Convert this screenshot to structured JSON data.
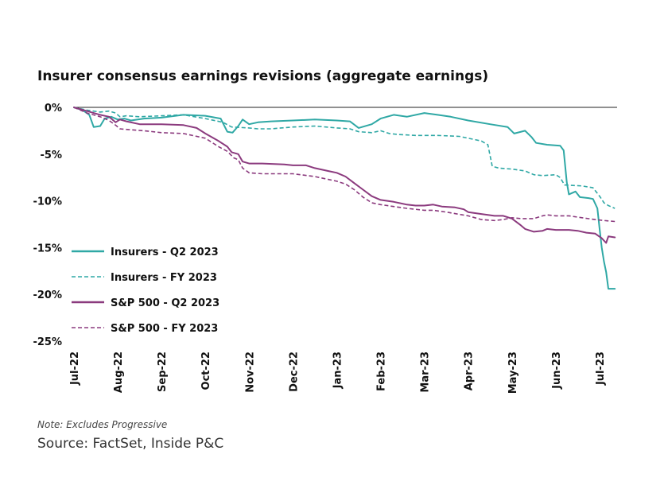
{
  "chart_data": {
    "type": "line",
    "title": "Insurer consensus earnings revisions (aggregate earnings)",
    "xlabel": "",
    "ylabel": "",
    "ylim": [
      -25,
      0
    ],
    "y_ticks": [
      0,
      -5,
      -10,
      -15,
      -20,
      -25
    ],
    "y_tick_labels": [
      "0%",
      "-5%",
      "-10%",
      "-15%",
      "-20%",
      "-25%"
    ],
    "x_range": [
      0,
      12.4
    ],
    "x_ticks": [
      0,
      1,
      2,
      3,
      4,
      5,
      6,
      7,
      8,
      9,
      10,
      11,
      12
    ],
    "x_tick_labels": [
      "Jul-22",
      "Aug-22",
      "Sep-22",
      "Oct-22",
      "Nov-22",
      "Dec-22",
      "Jan-23",
      "Feb-23",
      "Mar-23",
      "Apr-23",
      "May-23",
      "Jun-23",
      "Jul-23"
    ],
    "legend_position": "left",
    "series": [
      {
        "name": "Insurers - Q2 2023",
        "color": "#2fa8a5",
        "dash": "solid",
        "points": [
          [
            0,
            0
          ],
          [
            0.2,
            -0.3
          ],
          [
            0.35,
            -0.8
          ],
          [
            0.45,
            -2.1
          ],
          [
            0.6,
            -2.0
          ],
          [
            0.7,
            -1.2
          ],
          [
            0.85,
            -1.0
          ],
          [
            1.0,
            -1.3
          ],
          [
            1.15,
            -1.2
          ],
          [
            1.3,
            -1.4
          ],
          [
            1.6,
            -1.2
          ],
          [
            2.0,
            -1.1
          ],
          [
            2.5,
            -0.8
          ],
          [
            3.0,
            -0.9
          ],
          [
            3.35,
            -1.2
          ],
          [
            3.5,
            -2.6
          ],
          [
            3.62,
            -2.7
          ],
          [
            3.75,
            -2.0
          ],
          [
            3.85,
            -1.3
          ],
          [
            4.0,
            -1.8
          ],
          [
            4.2,
            -1.6
          ],
          [
            4.5,
            -1.5
          ],
          [
            5.0,
            -1.4
          ],
          [
            5.5,
            -1.3
          ],
          [
            6.0,
            -1.4
          ],
          [
            6.3,
            -1.5
          ],
          [
            6.5,
            -2.2
          ],
          [
            6.8,
            -1.8
          ],
          [
            7.0,
            -1.2
          ],
          [
            7.3,
            -0.8
          ],
          [
            7.6,
            -1.0
          ],
          [
            8.0,
            -0.6
          ],
          [
            8.3,
            -0.8
          ],
          [
            8.6,
            -1.0
          ],
          [
            9.0,
            -1.4
          ],
          [
            9.5,
            -1.8
          ],
          [
            9.9,
            -2.1
          ],
          [
            10.05,
            -2.8
          ],
          [
            10.3,
            -2.5
          ],
          [
            10.45,
            -3.2
          ],
          [
            10.55,
            -3.8
          ],
          [
            10.8,
            -4.0
          ],
          [
            11.1,
            -4.1
          ],
          [
            11.18,
            -4.6
          ],
          [
            11.25,
            -8.0
          ],
          [
            11.3,
            -9.3
          ],
          [
            11.45,
            -9.0
          ],
          [
            11.55,
            -9.6
          ],
          [
            11.75,
            -9.7
          ],
          [
            11.85,
            -9.8
          ],
          [
            11.95,
            -10.8
          ],
          [
            12.0,
            -13.0
          ],
          [
            12.05,
            -15.0
          ],
          [
            12.1,
            -16.5
          ],
          [
            12.15,
            -17.6
          ],
          [
            12.2,
            -19.4
          ],
          [
            12.35,
            -19.4
          ]
        ]
      },
      {
        "name": "Insurers - FY 2023",
        "color": "#2fa8a5",
        "dash": "dashed",
        "points": [
          [
            0,
            0
          ],
          [
            0.3,
            -0.3
          ],
          [
            0.6,
            -0.5
          ],
          [
            0.8,
            -0.4
          ],
          [
            0.95,
            -0.6
          ],
          [
            1.05,
            -1.0
          ],
          [
            1.2,
            -0.9
          ],
          [
            1.5,
            -1.0
          ],
          [
            2.0,
            -0.9
          ],
          [
            2.5,
            -0.8
          ],
          [
            3.0,
            -1.2
          ],
          [
            3.4,
            -1.6
          ],
          [
            3.6,
            -2.1
          ],
          [
            4.0,
            -2.2
          ],
          [
            4.2,
            -2.3
          ],
          [
            4.5,
            -2.3
          ],
          [
            5.0,
            -2.1
          ],
          [
            5.5,
            -2.0
          ],
          [
            6.0,
            -2.2
          ],
          [
            6.3,
            -2.3
          ],
          [
            6.5,
            -2.6
          ],
          [
            6.8,
            -2.7
          ],
          [
            7.0,
            -2.5
          ],
          [
            7.2,
            -2.8
          ],
          [
            7.4,
            -2.9
          ],
          [
            7.8,
            -3.0
          ],
          [
            8.3,
            -3.0
          ],
          [
            8.8,
            -3.1
          ],
          [
            9.0,
            -3.3
          ],
          [
            9.3,
            -3.6
          ],
          [
            9.45,
            -4.0
          ],
          [
            9.55,
            -6.3
          ],
          [
            9.7,
            -6.5
          ],
          [
            10.0,
            -6.6
          ],
          [
            10.3,
            -6.8
          ],
          [
            10.5,
            -7.2
          ],
          [
            10.7,
            -7.3
          ],
          [
            11.0,
            -7.2
          ],
          [
            11.1,
            -7.5
          ],
          [
            11.2,
            -8.3
          ],
          [
            11.6,
            -8.4
          ],
          [
            11.85,
            -8.6
          ],
          [
            12.0,
            -9.5
          ],
          [
            12.1,
            -10.2
          ],
          [
            12.2,
            -10.5
          ],
          [
            12.35,
            -10.8
          ]
        ]
      },
      {
        "name": "S&P 500 - Q2 2023",
        "color": "#8b3a7e",
        "dash": "solid",
        "points": [
          [
            0,
            0
          ],
          [
            0.3,
            -0.4
          ],
          [
            0.6,
            -0.8
          ],
          [
            0.8,
            -1.0
          ],
          [
            0.95,
            -1.6
          ],
          [
            1.05,
            -1.3
          ],
          [
            1.2,
            -1.5
          ],
          [
            1.5,
            -1.8
          ],
          [
            2.0,
            -1.8
          ],
          [
            2.5,
            -1.9
          ],
          [
            2.8,
            -2.2
          ],
          [
            3.0,
            -2.8
          ],
          [
            3.3,
            -3.6
          ],
          [
            3.5,
            -4.2
          ],
          [
            3.6,
            -4.8
          ],
          [
            3.75,
            -5.0
          ],
          [
            3.85,
            -5.8
          ],
          [
            4.0,
            -6.0
          ],
          [
            4.3,
            -6.0
          ],
          [
            4.8,
            -6.1
          ],
          [
            5.0,
            -6.2
          ],
          [
            5.3,
            -6.2
          ],
          [
            5.5,
            -6.5
          ],
          [
            5.8,
            -6.8
          ],
          [
            6.0,
            -7.0
          ],
          [
            6.2,
            -7.4
          ],
          [
            6.4,
            -8.1
          ],
          [
            6.6,
            -8.8
          ],
          [
            6.8,
            -9.5
          ],
          [
            7.0,
            -9.9
          ],
          [
            7.3,
            -10.1
          ],
          [
            7.6,
            -10.4
          ],
          [
            7.8,
            -10.5
          ],
          [
            8.0,
            -10.5
          ],
          [
            8.2,
            -10.4
          ],
          [
            8.4,
            -10.6
          ],
          [
            8.7,
            -10.7
          ],
          [
            8.9,
            -10.9
          ],
          [
            9.0,
            -11.2
          ],
          [
            9.3,
            -11.4
          ],
          [
            9.6,
            -11.6
          ],
          [
            9.8,
            -11.6
          ],
          [
            10.0,
            -11.9
          ],
          [
            10.2,
            -12.6
          ],
          [
            10.3,
            -13.0
          ],
          [
            10.5,
            -13.3
          ],
          [
            10.7,
            -13.2
          ],
          [
            10.8,
            -13.0
          ],
          [
            11.0,
            -13.1
          ],
          [
            11.3,
            -13.1
          ],
          [
            11.5,
            -13.2
          ],
          [
            11.7,
            -13.4
          ],
          [
            11.9,
            -13.5
          ],
          [
            12.05,
            -14.0
          ],
          [
            12.15,
            -14.5
          ],
          [
            12.2,
            -13.8
          ],
          [
            12.35,
            -13.9
          ]
        ]
      },
      {
        "name": "S&P 500 - FY 2023",
        "color": "#8b3a7e",
        "dash": "dashed",
        "points": [
          [
            0,
            0
          ],
          [
            0.3,
            -0.6
          ],
          [
            0.6,
            -1.0
          ],
          [
            0.8,
            -1.4
          ],
          [
            0.95,
            -1.9
          ],
          [
            1.05,
            -2.3
          ],
          [
            1.3,
            -2.4
          ],
          [
            1.6,
            -2.5
          ],
          [
            2.0,
            -2.7
          ],
          [
            2.5,
            -2.8
          ],
          [
            3.0,
            -3.3
          ],
          [
            3.3,
            -4.2
          ],
          [
            3.5,
            -4.7
          ],
          [
            3.65,
            -5.4
          ],
          [
            3.75,
            -5.6
          ],
          [
            3.85,
            -6.5
          ],
          [
            4.0,
            -7.0
          ],
          [
            4.3,
            -7.1
          ],
          [
            5.0,
            -7.1
          ],
          [
            5.5,
            -7.4
          ],
          [
            6.0,
            -7.9
          ],
          [
            6.2,
            -8.2
          ],
          [
            6.4,
            -8.8
          ],
          [
            6.6,
            -9.6
          ],
          [
            6.8,
            -10.2
          ],
          [
            7.0,
            -10.4
          ],
          [
            7.3,
            -10.6
          ],
          [
            7.6,
            -10.8
          ],
          [
            8.0,
            -11.0
          ],
          [
            8.2,
            -11.0
          ],
          [
            8.5,
            -11.2
          ],
          [
            9.0,
            -11.6
          ],
          [
            9.3,
            -12.0
          ],
          [
            9.6,
            -12.1
          ],
          [
            9.8,
            -12.0
          ],
          [
            10.0,
            -11.8
          ],
          [
            10.2,
            -11.9
          ],
          [
            10.5,
            -11.9
          ],
          [
            10.7,
            -11.6
          ],
          [
            10.8,
            -11.5
          ],
          [
            11.0,
            -11.6
          ],
          [
            11.3,
            -11.6
          ],
          [
            11.6,
            -11.8
          ],
          [
            11.9,
            -12.0
          ],
          [
            12.1,
            -12.1
          ],
          [
            12.35,
            -12.2
          ]
        ]
      }
    ]
  },
  "footer": {
    "note": "Note: Excludes Progressive",
    "source": "Source: FactSet, Inside P&C"
  }
}
